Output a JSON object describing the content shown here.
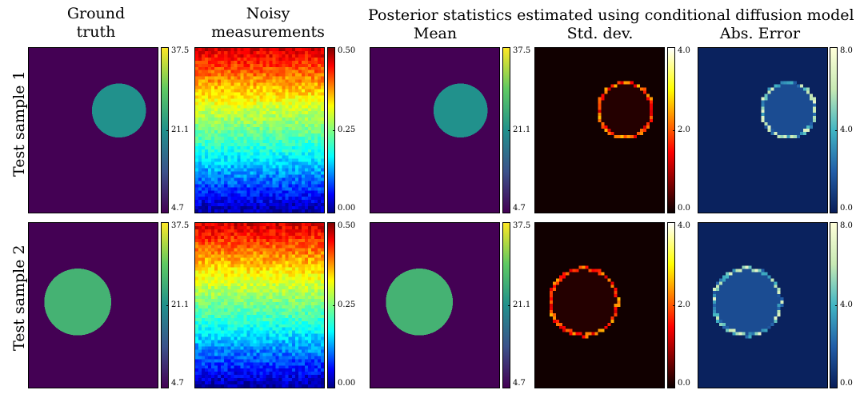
{
  "headers": {
    "ground_truth": [
      "Ground",
      "truth"
    ],
    "noisy": [
      "Noisy",
      "measurements"
    ],
    "posterior_title": "Posterior statistics estimated using conditional diffusion model",
    "mean": "Mean",
    "std": "Std. dev.",
    "abs_error": "Abs. Error"
  },
  "rows": [
    "Test sample 1",
    "Test sample 2"
  ],
  "colorbars": {
    "ground_truth": {
      "colormap": "viridis",
      "ticks": [
        "37.5",
        "21.1",
        "4.7"
      ]
    },
    "noisy": {
      "colormap": "jet",
      "ticks": [
        "0.50",
        "0.25",
        "0.00"
      ]
    },
    "mean": {
      "colormap": "viridis",
      "ticks": [
        "37.5",
        "21.1",
        "4.7"
      ]
    },
    "std": {
      "colormap": "hot",
      "ticks": [
        "4.0",
        "2.0",
        "0.0"
      ]
    },
    "abs_error": {
      "colormap": "YlGnBu",
      "ticks": [
        "8.0",
        "4.0",
        "0.0"
      ]
    }
  },
  "chart_data": {
    "type": "heatmap",
    "columns": [
      "Ground truth",
      "Noisy measurements",
      "Mean",
      "Std. dev.",
      "Abs. Error"
    ],
    "value_ranges": {
      "Ground truth": [
        4.7,
        37.5
      ],
      "Noisy measurements": [
        0.0,
        0.5
      ],
      "Mean": [
        4.7,
        37.5
      ],
      "Std. dev.": [
        0.0,
        4.0
      ],
      "Abs. Error": [
        0.0,
        8.0
      ]
    },
    "samples": [
      {
        "name": "Test sample 1",
        "background": 4.7,
        "inclusion": 21.1
      },
      {
        "name": "Test sample 2",
        "background": 4.7,
        "inclusion": 26.0
      }
    ]
  }
}
